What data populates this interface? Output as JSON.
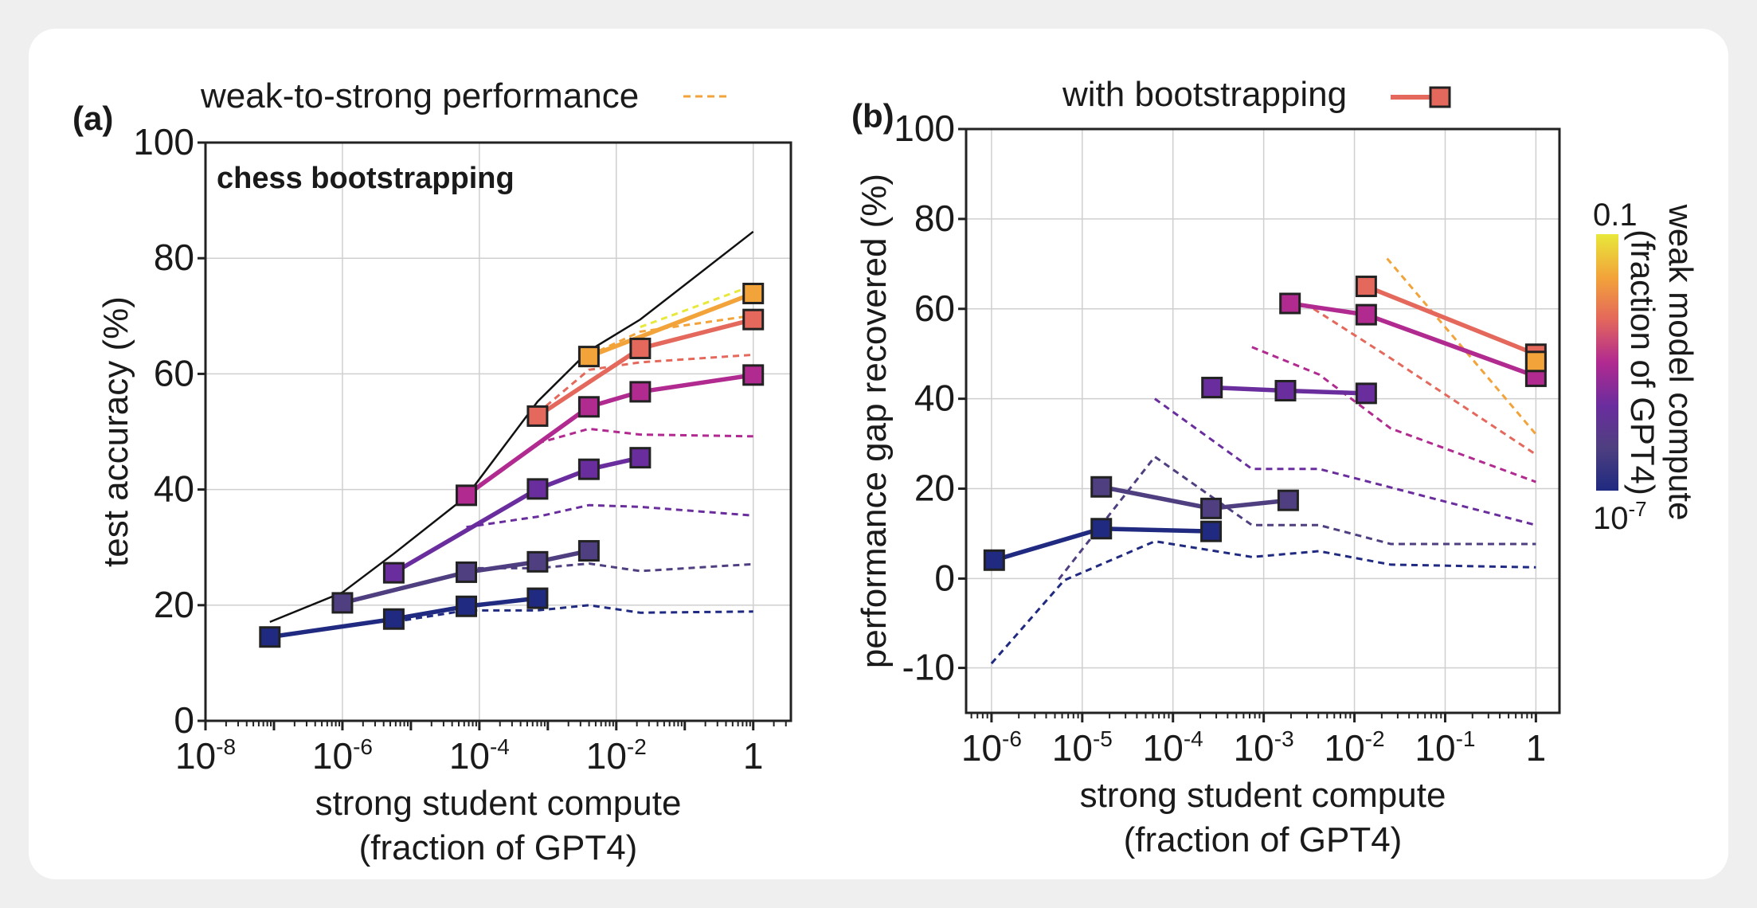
{
  "legend": {
    "weak_to_strong_label": "weak-to-strong performance",
    "weak_to_strong_color": "#f2a33a",
    "bootstrapping_label": "with bootstrapping",
    "bootstrapping_color": "#e4685b"
  },
  "colorbar": {
    "label_line1": "weak model compute",
    "label_line2": "(fraction of GPT4)",
    "top_label": "0.1",
    "bottom_label_base": "10",
    "bottom_label_exp": "-7",
    "colors": [
      "#1f2a80",
      "#4f3f80",
      "#6a2d9e",
      "#b12a90",
      "#e4685b",
      "#f2a33a",
      "#e8e83a"
    ]
  },
  "chart_data": [
    {
      "type": "line",
      "panel_label": "(a)",
      "title": "chess bootstrapping",
      "xlabel": "strong student compute",
      "xlabel2": "(fraction of GPT4)",
      "ylabel": "test accuracy (%)",
      "xscale": "log",
      "xlim_log10": [
        -8,
        0.55
      ],
      "ylim": [
        0,
        100
      ],
      "grid": true,
      "x_ticks": [
        {
          "base": "10",
          "exp": "-8",
          "log10": -8
        },
        {
          "base": "10",
          "exp": "-6",
          "log10": -6
        },
        {
          "base": "10",
          "exp": "-4",
          "log10": -4
        },
        {
          "base": "10",
          "exp": "-2",
          "log10": -2
        },
        {
          "base": "1",
          "exp": "",
          "log10": 0
        }
      ],
      "y_ticks": [
        "0",
        "20",
        "40",
        "60",
        "80",
        "100"
      ],
      "ceiling": {
        "color": "#111111",
        "x_log10": [
          -7.06,
          -6.0,
          -5.25,
          -4.19,
          -3.15,
          -2.4,
          -1.65,
          0
        ],
        "y": [
          17.1,
          22.2,
          28.9,
          38.8,
          55.2,
          64.0,
          69.4,
          84.6
        ]
      },
      "bootstrapping_series": [
        {
          "color": "#1f2a80",
          "x_log10": [
            -7.06,
            -5.25,
            -4.19,
            -3.15
          ],
          "y": [
            14.5,
            17.6,
            19.8,
            21.2
          ]
        },
        {
          "color": "#4f3f80",
          "x_log10": [
            -6.0,
            -4.19,
            -3.15,
            -2.4
          ],
          "y": [
            20.4,
            25.7,
            27.5,
            29.4
          ]
        },
        {
          "color": "#6a2d9e",
          "x_log10": [
            -5.25,
            -3.15,
            -2.4,
            -1.65
          ],
          "y": [
            25.6,
            40.1,
            43.5,
            45.5
          ]
        },
        {
          "color": "#b12a90",
          "x_log10": [
            -4.19,
            -2.4,
            -1.65,
            0
          ],
          "y": [
            39.0,
            54.3,
            56.9,
            59.8
          ]
        },
        {
          "color": "#e4685b",
          "x_log10": [
            -3.15,
            -1.65,
            0
          ],
          "y": [
            52.7,
            64.4,
            69.4
          ]
        },
        {
          "color": "#f2a33a",
          "x_log10": [
            -2.4,
            0
          ],
          "y": [
            63.0,
            73.9
          ]
        }
      ],
      "weak_to_strong_series": [
        {
          "color": "#1f2a80",
          "x_log10": [
            -5.25,
            -4.19,
            -3.15,
            -2.4,
            -1.65,
            0
          ],
          "y": [
            17.1,
            19.1,
            19.1,
            20.0,
            18.7,
            18.9
          ]
        },
        {
          "color": "#4f3f80",
          "x_log10": [
            -4.19,
            -3.15,
            -2.4,
            -1.65,
            0
          ],
          "y": [
            26.4,
            26.4,
            27.2,
            25.9,
            27.1
          ]
        },
        {
          "color": "#6a2d9e",
          "x_log10": [
            -4.19,
            -3.15,
            -2.4,
            -1.65,
            0
          ],
          "y": [
            33.5,
            35.3,
            37.3,
            37.0,
            35.5
          ]
        },
        {
          "color": "#b12a90",
          "x_log10": [
            -3.15,
            -2.4,
            -1.65,
            0
          ],
          "y": [
            48.0,
            50.5,
            49.5,
            49.2
          ]
        },
        {
          "color": "#e4685b",
          "x_log10": [
            -3.15,
            -2.4,
            -1.65,
            0
          ],
          "y": [
            53.2,
            60.7,
            62.0,
            63.3
          ]
        },
        {
          "color": "#f2a33a",
          "x_log10": [
            -2.4,
            -1.65,
            0
          ],
          "y": [
            63.2,
            67.3,
            70.1
          ]
        },
        {
          "color": "#e8e83a",
          "x_log10": [
            -1.65,
            0
          ],
          "y": [
            68.1,
            75.3
          ]
        }
      ]
    },
    {
      "type": "line",
      "panel_label": "(b)",
      "xlabel": "strong student compute",
      "xlabel2": "(fraction of GPT4)",
      "ylabel": "performance gap recovered (%)",
      "xscale": "log",
      "xlim_log10": [
        -6.28,
        0.26
      ],
      "ylim": [
        -15,
        100
      ],
      "grid": true,
      "x_ticks": [
        {
          "base": "10",
          "exp": "-6",
          "log10": -6
        },
        {
          "base": "10",
          "exp": "-5",
          "log10": -5
        },
        {
          "base": "10",
          "exp": "-4",
          "log10": -4
        },
        {
          "base": "10",
          "exp": "-3",
          "log10": -3
        },
        {
          "base": "10",
          "exp": "-2",
          "log10": -2
        },
        {
          "base": "10",
          "exp": "-1",
          "log10": -1
        },
        {
          "base": "1",
          "exp": "",
          "log10": 0
        }
      ],
      "y_ticks": [
        "-10",
        "0",
        "20",
        "40",
        "60",
        "80",
        "100"
      ],
      "bootstrapping_series": [
        {
          "color": "#1f2a80",
          "x_log10": [
            -5.97,
            -4.79,
            -3.58
          ],
          "y": [
            4.1,
            11.1,
            10.5
          ]
        },
        {
          "color": "#4f3f80",
          "x_log10": [
            -4.79,
            -3.58,
            -2.73
          ],
          "y": [
            20.4,
            15.6,
            17.4
          ]
        },
        {
          "color": "#6a2d9e",
          "x_log10": [
            -3.57,
            -2.76,
            -1.87
          ],
          "y": [
            42.5,
            41.8,
            41.2
          ]
        },
        {
          "color": "#b12a90",
          "x_log10": [
            -2.71,
            -1.87,
            0
          ],
          "y": [
            61.2,
            58.7,
            45.0
          ]
        },
        {
          "color": "#e4685b",
          "x_log10": [
            -1.87,
            0
          ],
          "y": [
            65.0,
            49.9
          ]
        },
        {
          "color": "#f2a33a",
          "x_log10": [
            0
          ],
          "y": [
            48.3
          ]
        }
      ],
      "weak_to_strong_series": [
        {
          "color": "#1f2a80",
          "x_log10": [
            -6.0,
            -5.2,
            -4.2,
            -3.13,
            -2.39,
            -1.6,
            0
          ],
          "y": [
            -9.5,
            -0.2,
            8.3,
            4.8,
            6.1,
            3.1,
            2.5
          ]
        },
        {
          "color": "#4f3f80",
          "x_log10": [
            -5.26,
            -4.2,
            -3.13,
            -2.39,
            -1.6,
            0
          ],
          "y": [
            -0.1,
            27.1,
            11.9,
            11.9,
            7.7,
            7.7
          ]
        },
        {
          "color": "#6a2d9e",
          "x_log10": [
            -4.2,
            -3.13,
            -2.39,
            0
          ],
          "y": [
            40.0,
            24.4,
            24.4,
            11.9
          ]
        },
        {
          "color": "#b12a90",
          "x_log10": [
            -3.13,
            -2.39,
            -1.6,
            0
          ],
          "y": [
            51.5,
            45.4,
            33.4,
            21.5
          ]
        },
        {
          "color": "#e4685b",
          "x_log10": [
            -2.45,
            -1.6,
            0
          ],
          "y": [
            60.0,
            49.0,
            27.6
          ]
        },
        {
          "color": "#f2a33a",
          "x_log10": [
            -1.64,
            0
          ],
          "y": [
            71.2,
            32.1
          ]
        }
      ]
    }
  ]
}
